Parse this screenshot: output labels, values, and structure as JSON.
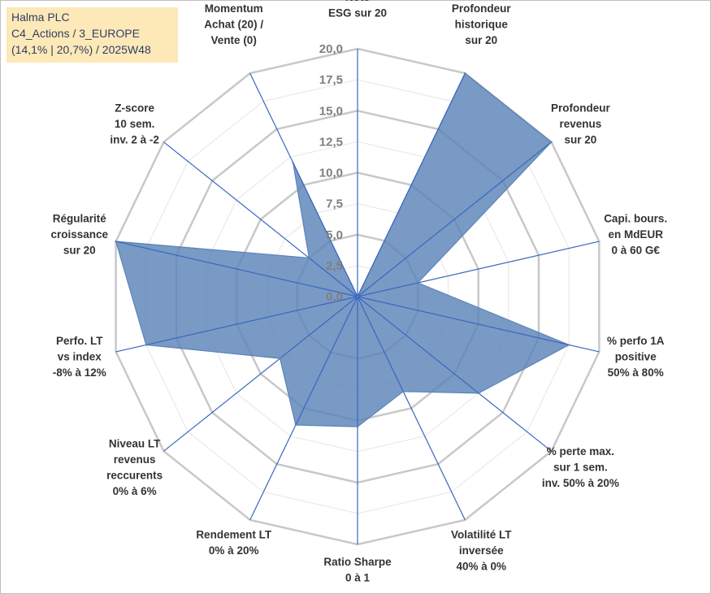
{
  "info_box": {
    "line1": "Halma PLC",
    "line2": "C4_Actions / 3_EUROPE",
    "line3": "(14,1% | 20,7%) / 2025W48"
  },
  "chart_data": {
    "type": "radar",
    "rmin": 0,
    "rmax": 20,
    "tick_values": [
      0,
      2.5,
      5,
      7.5,
      10,
      12.5,
      15,
      17.5,
      20
    ],
    "tick_labels": [
      "0,0",
      "2,5",
      "5,0",
      "7,5",
      "10,0",
      "12,5",
      "15,0",
      "17,5",
      "20,0"
    ],
    "grid_rings": [
      5,
      10,
      15,
      20
    ],
    "fine_rings": [
      2.5,
      7.5,
      12.5,
      17.5
    ],
    "colors": {
      "fill": "#5b84b8",
      "stroke": "#5b84b8",
      "spoke": "#3a66c0",
      "grid": "#c8c8c8",
      "fine_grid": "#e6e6e6"
    },
    "categories": [
      {
        "lines": [
          "Note",
          "ESG sur 20"
        ],
        "value": 0
      },
      {
        "lines": [
          "Profondeur",
          "historique",
          "sur 20"
        ],
        "value": 20
      },
      {
        "lines": [
          "Profondeur",
          "revenus",
          "sur 20"
        ],
        "value": 20
      },
      {
        "lines": [
          "Capi. bours.",
          "en MdEUR",
          "0 à 60 G€"
        ],
        "value": 5
      },
      {
        "lines": [
          "% perfo 1A",
          "positive",
          "50% à 80%"
        ],
        "value": 17.5
      },
      {
        "lines": [
          "% perte max.",
          "sur 1 sem.",
          "inv. 50% à 20%"
        ],
        "value": 12.5
      },
      {
        "lines": [
          "Volatilité LT",
          "inversée",
          "40% à 0%"
        ],
        "value": 8.5
      },
      {
        "lines": [
          "Ratio Sharpe",
          "0 à 1"
        ],
        "value": 10.5
      },
      {
        "lines": [
          "Rendement LT",
          "0% à 20%"
        ],
        "value": 11.5
      },
      {
        "lines": [
          "Niveau LT",
          "revenus",
          "reccurents",
          "0% à 6%"
        ],
        "value": 8
      },
      {
        "lines": [
          "Perfo. LT",
          "vs index",
          "-8% à 12%"
        ],
        "value": 17.5
      },
      {
        "lines": [
          "Régularité",
          "croissance",
          "sur 20"
        ],
        "value": 20
      },
      {
        "lines": [
          "Z-score",
          "10 sem.",
          "inv. 2 à -2"
        ],
        "value": 5
      },
      {
        "lines": [
          "Momentum",
          "Achat (20) /",
          "Vente (0)"
        ],
        "value": 12
      }
    ]
  }
}
